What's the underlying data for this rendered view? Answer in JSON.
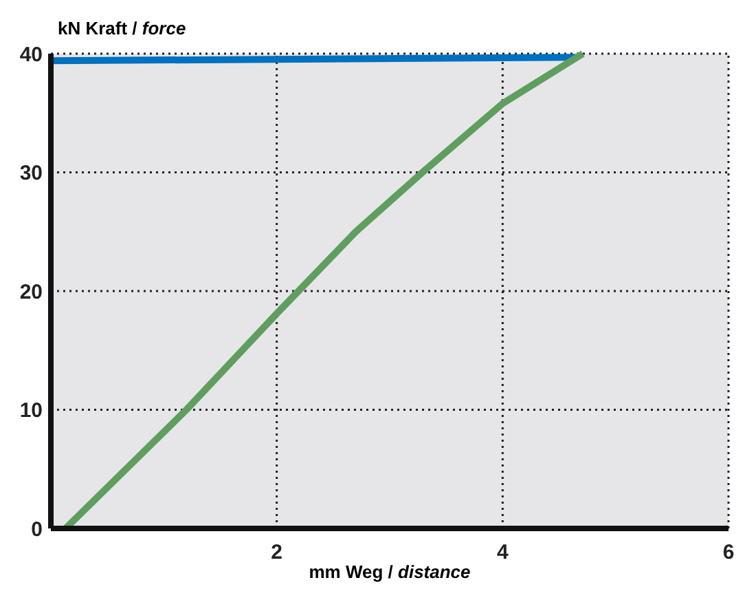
{
  "chart_data": {
    "type": "line",
    "xlabel": "mm Weg / distance",
    "ylabel": "kN Kraft / force",
    "xlim": [
      0,
      6
    ],
    "ylim": [
      0,
      40
    ],
    "xticks": [
      2,
      4,
      6
    ],
    "yticks": [
      0,
      10,
      20,
      30,
      40
    ],
    "grid": true,
    "line_style": "solid",
    "marker": "none",
    "series": [
      {
        "color": "#0070c0",
        "x": [
          0,
          4.65
        ],
        "values": [
          39.4,
          39.7
        ]
      },
      {
        "color": "#5f9e5f",
        "x": [
          0.13,
          1.2,
          2,
          2.7,
          3.29,
          4,
          4.71
        ],
        "values": [
          0,
          10,
          18.1,
          25,
          30,
          35.8,
          40
        ]
      }
    ]
  }
}
